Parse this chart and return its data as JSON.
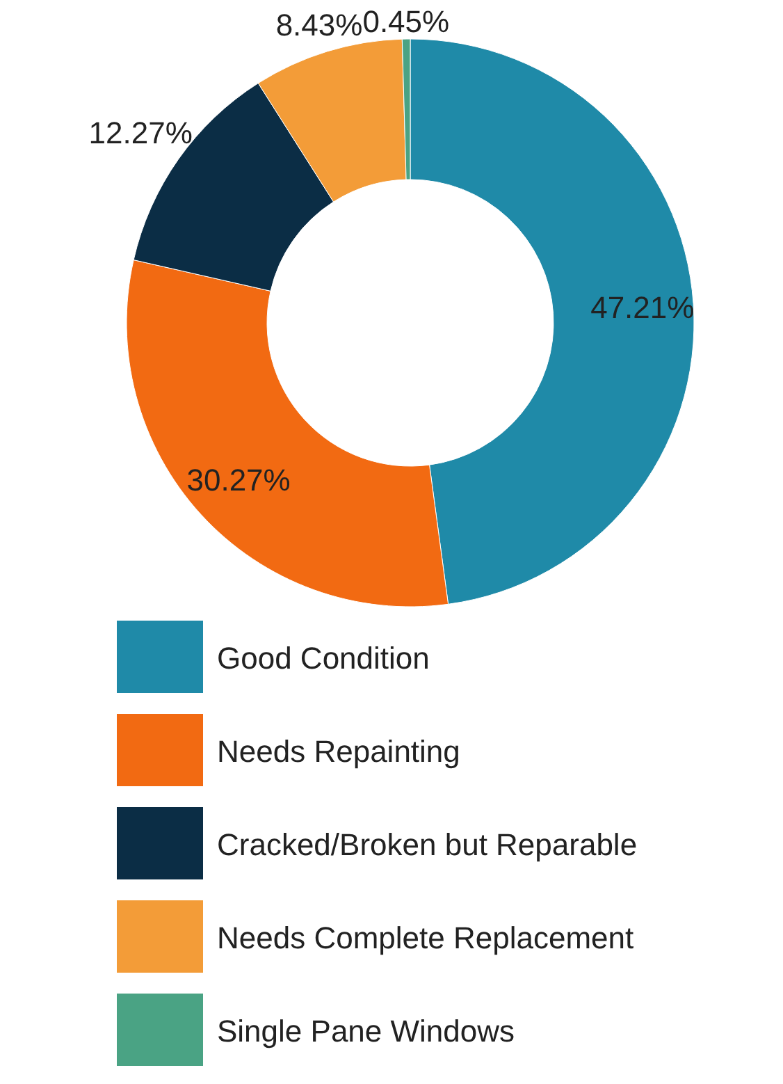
{
  "chart_data": {
    "type": "donut",
    "categories": [
      "Good Condition",
      "Needs Repainting",
      "Cracked/Broken but Reparable",
      "Needs Complete Replacement",
      "Single Pane Windows"
    ],
    "values": [
      47.21,
      30.27,
      12.27,
      8.43,
      0.45
    ],
    "colors": [
      "#1f8aa8",
      "#f26a12",
      "#0b2d45",
      "#f39c38",
      "#4aa384"
    ],
    "value_labels": [
      "47.21%",
      "30.27%",
      "12.27%",
      "8.43%",
      "0.45%"
    ],
    "legend": "bottom"
  }
}
